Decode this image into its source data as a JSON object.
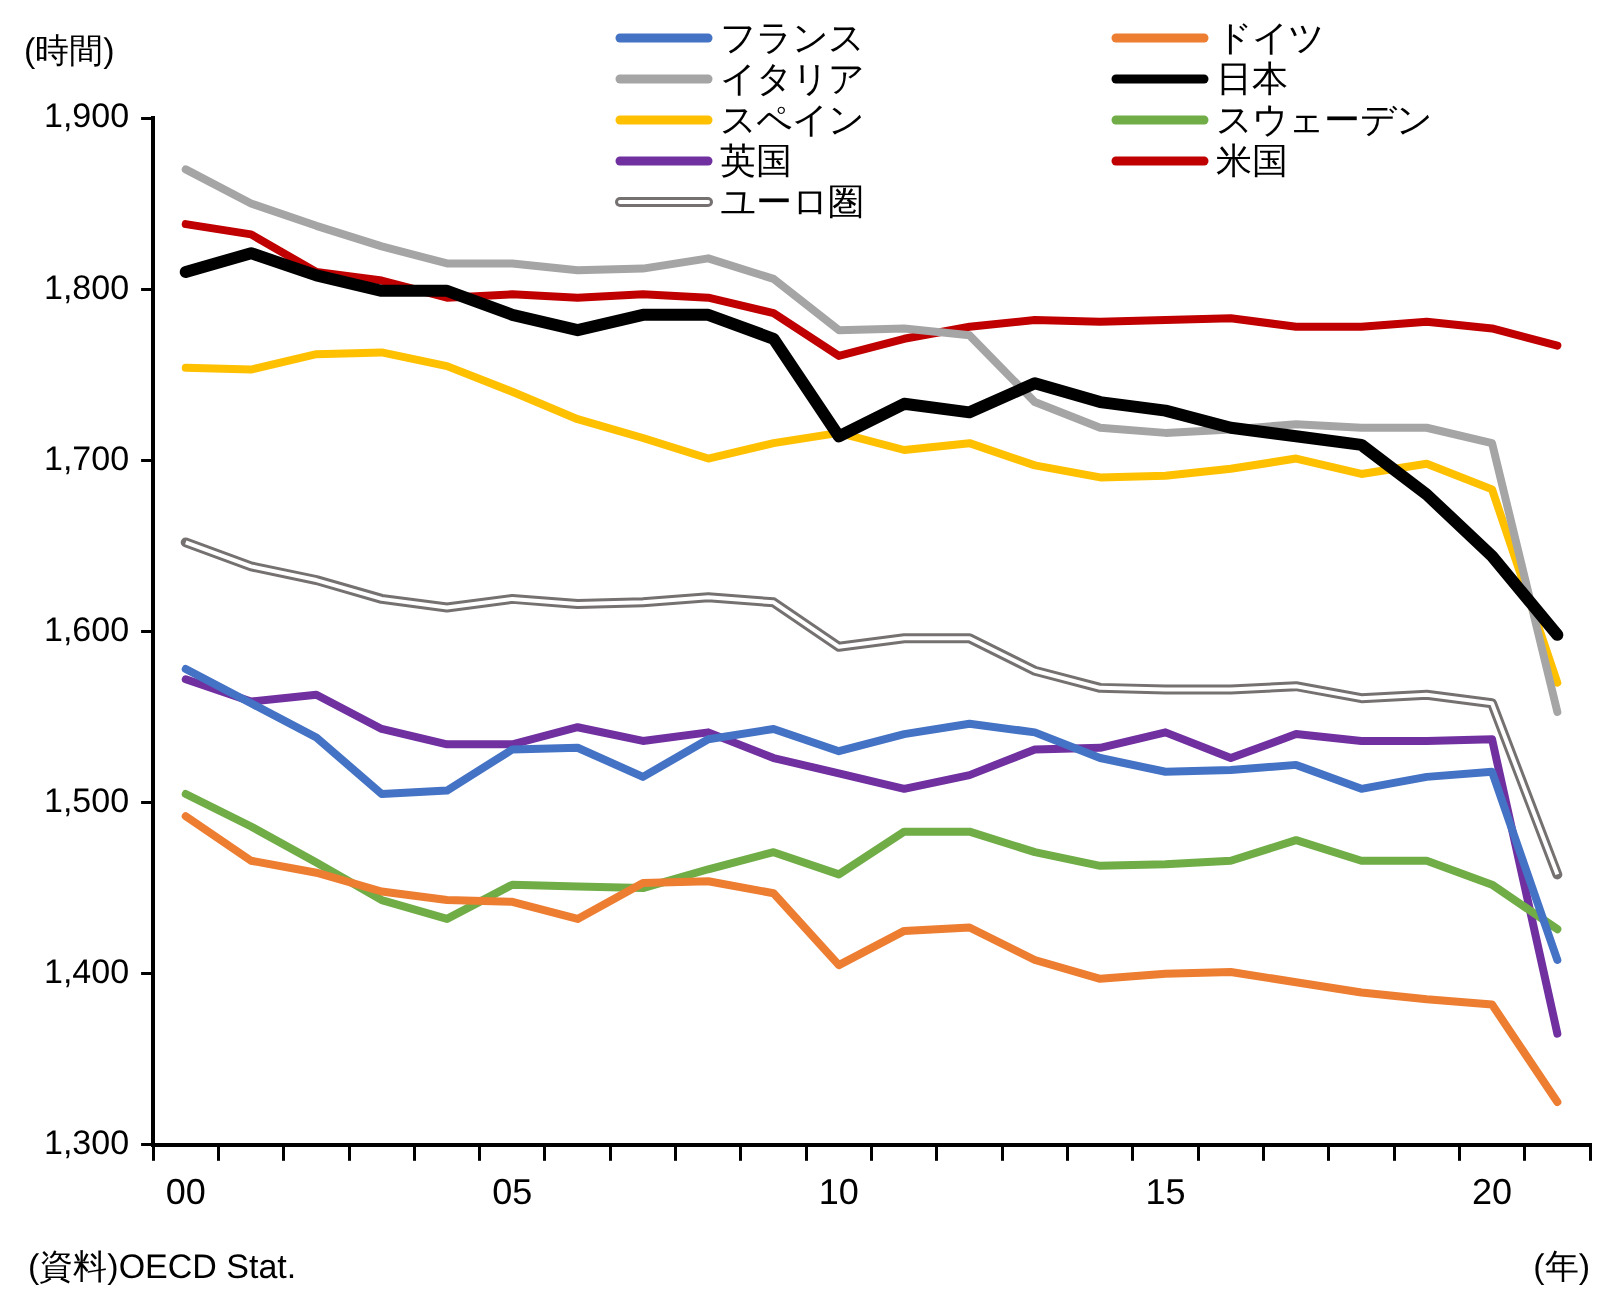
{
  "chart_data": {
    "type": "line",
    "ylabel": "(時間)",
    "xlabel": "(年)",
    "annotations": [
      "(資料)OECD Stat."
    ],
    "categories": [
      "00",
      null,
      null,
      null,
      null,
      "05",
      null,
      null,
      null,
      null,
      "10",
      null,
      null,
      null,
      null,
      "15",
      null,
      null,
      null,
      null,
      "20",
      null
    ],
    "ylim": [
      1300,
      1900
    ],
    "yticks": [
      {
        "value": 1300,
        "label": "1,300"
      },
      {
        "value": 1400,
        "label": "1,400"
      },
      {
        "value": 1500,
        "label": "1,500"
      },
      {
        "value": 1600,
        "label": "1,600"
      },
      {
        "value": 1700,
        "label": "1,700"
      },
      {
        "value": 1800,
        "label": "1,800"
      },
      {
        "value": 1900,
        "label": "1,900"
      }
    ],
    "grid": false,
    "legend": "top",
    "marker": "none",
    "line_style": "solid",
    "series": [
      {
        "name": "フランス",
        "color": "#4472c4",
        "values": [
          1578,
          1558,
          1538,
          1505,
          1507,
          1531,
          1532,
          1515,
          1537,
          1543,
          1530,
          1540,
          1546,
          1541,
          1526,
          1518,
          1519,
          1522,
          1508,
          1515,
          1518,
          1408
        ]
      },
      {
        "name": "ドイツ",
        "color": "#ed7d31",
        "values": [
          1492,
          1466,
          1459,
          1448,
          1443,
          1442,
          1432,
          1453,
          1454,
          1447,
          1405,
          1425,
          1427,
          1408,
          1397,
          1400,
          1401,
          1395,
          1389,
          1385,
          1382,
          1325
        ]
      },
      {
        "name": "イタリア",
        "color": "#a5a5a5",
        "values": [
          1870,
          1850,
          1837,
          1825,
          1815,
          1815,
          1811,
          1812,
          1818,
          1806,
          1776,
          1777,
          1773,
          1734,
          1719,
          1716,
          1718,
          1721,
          1719,
          1719,
          1710,
          1553
        ]
      },
      {
        "name": "日本",
        "color": "#000000",
        "values": [
          1810,
          1821,
          1808,
          1799,
          1799,
          1785,
          1776,
          1785,
          1785,
          1771,
          1714,
          1733,
          1728,
          1745,
          1734,
          1729,
          1719,
          1714,
          1709,
          1680,
          1644,
          1598
        ]
      },
      {
        "name": "スペイン",
        "color": "#ffc000",
        "values": [
          1754,
          1753,
          1762,
          1763,
          1755,
          1740,
          1724,
          1713,
          1701,
          1710,
          1716,
          1706,
          1710,
          1697,
          1690,
          1691,
          1695,
          1701,
          1692,
          1698,
          1683,
          1570
        ]
      },
      {
        "name": "スウェーデン",
        "color": "#70ad47",
        "values": [
          1505,
          1486,
          1465,
          1443,
          1432,
          1452,
          1451,
          1450,
          1461,
          1471,
          1458,
          1483,
          1483,
          1471,
          1463,
          1464,
          1466,
          1478,
          1466,
          1466,
          1452,
          1426
        ]
      },
      {
        "name": "英国",
        "color": "#7030a0",
        "values": [
          1572,
          1559,
          1563,
          1543,
          1534,
          1534,
          1544,
          1536,
          1541,
          1526,
          1517,
          1508,
          1516,
          1531,
          1532,
          1541,
          1526,
          1540,
          1536,
          1536,
          1537,
          1365
        ]
      },
      {
        "name": "米国",
        "color": "#c00000",
        "values": [
          1838,
          1832,
          1810,
          1805,
          1795,
          1797,
          1795,
          1797,
          1795,
          1786,
          1761,
          1771,
          1778,
          1782,
          1781,
          1782,
          1783,
          1778,
          1778,
          1781,
          1777,
          1767
        ]
      },
      {
        "name": "ユーロ圏",
        "color": "#767171",
        "values": [
          1652,
          1638,
          1630,
          1619,
          1614,
          1619,
          1616,
          1617,
          1620,
          1617,
          1591,
          1596,
          1596,
          1577,
          1567,
          1566,
          1566,
          1568,
          1561,
          1563,
          1558,
          1458
        ]
      }
    ]
  }
}
